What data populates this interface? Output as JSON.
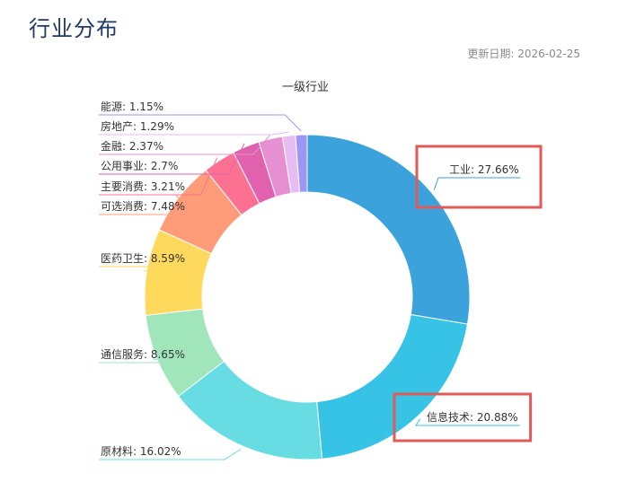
{
  "header": {
    "title": "行业分布",
    "update_label": "更新日期:",
    "update_date": "2026-02-25"
  },
  "chart_data": {
    "type": "pie",
    "variant": "donut",
    "title": "一级行业",
    "categories": [
      "工业",
      "信息技术",
      "原材料",
      "通信服务",
      "医药卫生",
      "可选消费",
      "主要消费",
      "公用事业",
      "金融",
      "房地产",
      "能源"
    ],
    "values": [
      27.66,
      20.88,
      16.02,
      8.65,
      8.59,
      7.48,
      3.21,
      2.7,
      2.37,
      1.29,
      1.15
    ],
    "labels": [
      "工业: 27.66%",
      "信息技术: 20.88%",
      "原材料: 16.02%",
      "通信服务: 8.65%",
      "医药卫生: 8.59%",
      "可选消费: 7.48%",
      "主要消费: 3.21%",
      "公用事业: 2.7%",
      "金融: 2.37%",
      "房地产: 1.29%",
      "能源: 1.15%"
    ],
    "colors": [
      "#3ca2db",
      "#37c3e6",
      "#67dde3",
      "#a1e6bb",
      "#fed95b",
      "#fe9c79",
      "#fc7191",
      "#e062ae",
      "#e690d1",
      "#e7bcf3",
      "#9d96f5"
    ],
    "highlighted": [
      "工业",
      "信息技术"
    ],
    "highlight_color": "#e05a57",
    "legend": "none"
  }
}
